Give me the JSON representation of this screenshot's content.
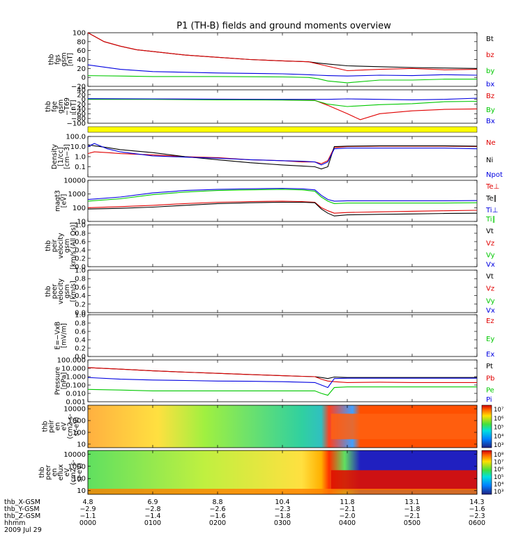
{
  "title": "P1 (TH-B) fields and ground moments overview",
  "colors": {
    "black": "#000000",
    "red": "#e00000",
    "green": "#00c800",
    "blue": "#0000e0",
    "yellow": "#ffff00"
  },
  "chart_data": [
    {
      "type": "line",
      "panel": "fgs",
      "ylabel": [
        "thb",
        "fgs",
        "gsm",
        "[nT]"
      ],
      "ylim": [
        -20,
        100
      ],
      "yticks": [
        "100",
        "80",
        "60",
        "40",
        "20",
        "0",
        "−20"
      ],
      "legend": [
        "Bt",
        "bz",
        "by",
        "bx"
      ],
      "series": [
        {
          "name": "Bt",
          "x": [
            0.0,
            0.25,
            0.5,
            0.75,
            1.0,
            1.5,
            2.0,
            2.5,
            3.0,
            3.2,
            3.4,
            3.55,
            3.7,
            4.0,
            4.5,
            5.0,
            5.5,
            6.0
          ],
          "values": [
            100,
            80,
            70,
            62,
            58,
            50,
            45,
            40,
            37,
            36,
            35,
            32,
            30,
            26,
            24,
            22,
            21,
            20
          ]
        },
        {
          "name": "bz",
          "x": [
            0.0,
            0.25,
            0.5,
            0.75,
            1.0,
            1.5,
            2.0,
            2.5,
            3.0,
            3.2,
            3.4,
            3.55,
            3.7,
            4.0,
            4.5,
            5.0,
            5.5,
            6.0
          ],
          "values": [
            100,
            80,
            70,
            62,
            58,
            50,
            45,
            40,
            37,
            36,
            35,
            30,
            25,
            15,
            18,
            20,
            17,
            18
          ]
        },
        {
          "name": "by",
          "x": [
            0.0,
            0.5,
            1.0,
            2.0,
            3.0,
            3.4,
            3.55,
            3.7,
            4.0,
            4.5,
            5.0,
            5.5,
            6.0
          ],
          "values": [
            4,
            3,
            2,
            2,
            1,
            0,
            -3,
            -8,
            -12,
            -6,
            -6,
            -4,
            -4
          ]
        },
        {
          "name": "bx",
          "x": [
            0.0,
            0.5,
            1.0,
            2.0,
            3.0,
            3.4,
            3.55,
            3.7,
            4.0,
            4.5,
            5.0,
            5.5,
            6.0
          ],
          "values": [
            28,
            18,
            13,
            10,
            8,
            6,
            5,
            4,
            3,
            5,
            4,
            6,
            5
          ]
        }
      ]
    },
    {
      "type": "line",
      "panel": "fge",
      "ylabel": [
        "thb",
        "fge",
        "gsm",
        "−T69",
        "[nT]"
      ],
      "ylim": [
        -100,
        40
      ],
      "yticks": [
        "40",
        "20",
        "0",
        "−20",
        "−40",
        "−60",
        "−80",
        "−100"
      ],
      "legend": [
        "Bz",
        "By",
        "Bx"
      ],
      "series": [
        {
          "name": "Bz",
          "x": [
            0.0,
            1.0,
            2.0,
            3.0,
            3.5,
            3.7,
            4.0,
            4.2,
            4.5,
            5.0,
            5.5,
            6.0
          ],
          "values": [
            2,
            2,
            0,
            -2,
            -4,
            -25,
            -60,
            -85,
            -60,
            -48,
            -42,
            -40
          ]
        },
        {
          "name": "By",
          "x": [
            0.0,
            1.0,
            2.0,
            3.0,
            3.5,
            3.7,
            4.0,
            4.5,
            5.0,
            5.5,
            6.0
          ],
          "values": [
            0,
            0,
            -2,
            -3,
            -5,
            -20,
            -30,
            -22,
            -18,
            -10,
            -8
          ]
        },
        {
          "name": "Bx",
          "x": [
            0.0,
            1.0,
            2.0,
            3.0,
            3.5,
            3.7,
            4.0,
            4.5,
            5.0,
            5.5,
            6.0
          ],
          "values": [
            3,
            2,
            1,
            0,
            0,
            0,
            2,
            0,
            -2,
            0,
            5
          ]
        }
      ]
    },
    {
      "type": "line",
      "panel": "density",
      "scale": "log",
      "ylabel": [
        "Density",
        "[1/cc]",
        "[cm−3]"
      ],
      "ylim": [
        0.01,
        100
      ],
      "yticks": [
        "100.0",
        "10.0",
        "1.0",
        "0.1"
      ],
      "legend": [
        "Ne",
        "Ni",
        "Npot"
      ],
      "series": [
        {
          "name": "Ne",
          "x": [
            0.0,
            0.1,
            0.3,
            0.5,
            1.0,
            1.5,
            2.0,
            2.5,
            3.0,
            3.3,
            3.5,
            3.6,
            3.7,
            3.8,
            4.0,
            4.5,
            5.0,
            5.5,
            6.0
          ],
          "values": [
            2,
            3,
            2.5,
            2,
            1.5,
            1,
            0.8,
            0.5,
            0.4,
            0.3,
            0.3,
            0.2,
            0.4,
            8,
            10,
            11,
            11,
            11,
            10
          ]
        },
        {
          "name": "Ni",
          "x": [
            0.0,
            0.1,
            0.3,
            0.5,
            1.0,
            1.5,
            2.0,
            2.5,
            3.0,
            3.3,
            3.5,
            3.6,
            3.7,
            3.8,
            4.0,
            4.5,
            5.0,
            5.5,
            6.0
          ],
          "values": [
            15,
            12,
            8,
            5,
            2.5,
            1,
            0.5,
            0.25,
            0.15,
            0.12,
            0.1,
            0.06,
            0.1,
            10,
            11,
            12,
            12,
            12,
            11
          ]
        },
        {
          "name": "Npot",
          "x": [
            0.0,
            0.1,
            0.3,
            0.5,
            1.0,
            1.5,
            2.0,
            2.5,
            3.0,
            3.3,
            3.5,
            3.6,
            3.7,
            3.8,
            4.0,
            4.5,
            5.0,
            5.5,
            6.0
          ],
          "values": [
            10,
            20,
            6,
            3,
            1.2,
            0.9,
            0.7,
            0.5,
            0.4,
            0.35,
            0.3,
            0.15,
            0.3,
            6,
            7,
            7,
            7,
            7,
            6
          ]
        }
      ]
    },
    {
      "type": "line",
      "panel": "temperature",
      "scale": "log",
      "ylabel": [
        "magt3",
        "[eV]"
      ],
      "ylim": [
        10,
        10000
      ],
      "yticks": [
        "10000",
        "1000",
        "100",
        "10"
      ],
      "legend": [
        "Te⊥",
        "Te∥",
        "Ti⊥",
        "Ti∥"
      ],
      "series": [
        {
          "name": "Te⊥",
          "x": [
            0.0,
            0.5,
            1.0,
            1.5,
            2.0,
            2.5,
            3.0,
            3.3,
            3.5,
            3.6,
            3.7,
            3.8,
            4.0,
            4.5,
            5.0,
            5.5,
            6.0
          ],
          "values": [
            100,
            120,
            150,
            200,
            250,
            280,
            300,
            280,
            250,
            100,
            60,
            40,
            45,
            50,
            55,
            60,
            65
          ]
        },
        {
          "name": "Te∥",
          "x": [
            0.0,
            0.5,
            1.0,
            1.5,
            2.0,
            2.5,
            3.0,
            3.3,
            3.5,
            3.6,
            3.7,
            3.8,
            4.0,
            4.5,
            5.0,
            5.5,
            6.0
          ],
          "values": [
            80,
            90,
            110,
            150,
            200,
            230,
            250,
            250,
            230,
            80,
            40,
            25,
            30,
            33,
            35,
            38,
            40
          ]
        },
        {
          "name": "Ti⊥",
          "x": [
            0.0,
            0.5,
            1.0,
            1.5,
            2.0,
            2.5,
            3.0,
            3.3,
            3.5,
            3.6,
            3.7,
            3.8,
            4.0,
            4.5,
            5.0,
            5.5,
            6.0
          ],
          "values": [
            400,
            600,
            1200,
            1800,
            2200,
            2400,
            2600,
            2400,
            2000,
            800,
            400,
            300,
            320,
            320,
            320,
            320,
            330
          ]
        },
        {
          "name": "Ti∥",
          "x": [
            0.0,
            0.5,
            1.0,
            1.5,
            2.0,
            2.5,
            3.0,
            3.3,
            3.5,
            3.6,
            3.7,
            3.8,
            4.0,
            4.5,
            5.0,
            5.5,
            6.0
          ],
          "values": [
            300,
            450,
            900,
            1400,
            1800,
            2000,
            2200,
            2000,
            1600,
            600,
            300,
            200,
            220,
            220,
            220,
            220,
            230
          ]
        }
      ]
    },
    {
      "type": "line",
      "panel": "peir_velocity",
      "ylabel": [
        "thb",
        "peir",
        "velocity",
        "gsm",
        "[km/s (All Qs)]"
      ],
      "ylim": [
        0,
        1
      ],
      "yticks": [
        "1.0",
        "0.8",
        "0.6",
        "0.4",
        "0.2",
        "0.0"
      ],
      "legend": [
        "Vt",
        "Vz",
        "Vy",
        "Vx"
      ],
      "series": []
    },
    {
      "type": "line",
      "panel": "peer_velocity",
      "ylabel": [
        "thb",
        "peer",
        "velocity",
        "gsm",
        "[km/s]"
      ],
      "ylim": [
        0,
        1
      ],
      "yticks": [
        "1.0",
        "0.8",
        "0.6",
        "0.4",
        "0.2",
        "0.0"
      ],
      "legend": [
        "Vt",
        "Vz",
        "Vy",
        "Vx"
      ],
      "series": []
    },
    {
      "type": "line",
      "panel": "efield",
      "ylabel": [
        "E=−VxB",
        "[mV/m]"
      ],
      "ylim": [
        0,
        1
      ],
      "yticks": [
        "1.0",
        "0.8",
        "0.6",
        "0.4",
        "0.2",
        "0.0"
      ],
      "legend": [
        "Ez",
        "Ey",
        "Ex"
      ],
      "series": []
    },
    {
      "type": "line",
      "panel": "pressure",
      "scale": "log",
      "ylabel": [
        "Pressure",
        "[nPa]"
      ],
      "ylim": [
        0.001,
        100
      ],
      "yticks": [
        "100.000",
        "10.000",
        "1.000",
        "0.100",
        "0.010",
        "0.001"
      ],
      "legend": [
        "Pt",
        "Pb",
        "Pe",
        "Pi"
      ],
      "series": [
        {
          "name": "Pt",
          "x": [
            0.0,
            0.5,
            1.0,
            1.5,
            2.0,
            2.5,
            3.0,
            3.3,
            3.5,
            3.6,
            3.7,
            3.8,
            4.0,
            4.5,
            5.0,
            5.5,
            6.0
          ],
          "values": [
            12,
            8,
            5,
            3.5,
            2.5,
            1.8,
            1.3,
            1.1,
            1.0,
            0.8,
            0.6,
            0.9,
            0.8,
            0.8,
            0.8,
            0.8,
            0.8
          ]
        },
        {
          "name": "Pb",
          "x": [
            0.0,
            0.5,
            1.0,
            1.5,
            2.0,
            2.5,
            3.0,
            3.3,
            3.5,
            3.6,
            3.7,
            3.8,
            4.0,
            4.5,
            5.0,
            5.5,
            6.0
          ],
          "values": [
            12,
            8,
            5,
            3.5,
            2.5,
            1.8,
            1.3,
            1.1,
            1.0,
            0.5,
            0.3,
            0.25,
            0.2,
            0.22,
            0.2,
            0.2,
            0.2
          ]
        },
        {
          "name": "Pe",
          "x": [
            0.0,
            0.5,
            1.0,
            1.5,
            2.0,
            2.5,
            3.0,
            3.3,
            3.5,
            3.6,
            3.7,
            3.8,
            4.0,
            4.5,
            5.0,
            5.5,
            6.0
          ],
          "values": [
            0.03,
            0.025,
            0.02,
            0.02,
            0.02,
            0.02,
            0.02,
            0.02,
            0.02,
            0.01,
            0.006,
            0.05,
            0.06,
            0.06,
            0.06,
            0.06,
            0.06
          ]
        },
        {
          "name": "Pi",
          "x": [
            0.0,
            0.5,
            1.0,
            1.5,
            2.0,
            2.5,
            3.0,
            3.3,
            3.5,
            3.6,
            3.7,
            3.8,
            4.0,
            4.5,
            5.0,
            5.5,
            6.0
          ],
          "values": [
            0.8,
            0.5,
            0.4,
            0.35,
            0.3,
            0.28,
            0.25,
            0.22,
            0.2,
            0.1,
            0.05,
            0.6,
            0.65,
            0.65,
            0.65,
            0.65,
            0.65
          ]
        }
      ]
    },
    {
      "type": "heatmap",
      "panel": "peir_eflux",
      "scale": "log",
      "ylabel": [
        "thb",
        "peir",
        "en",
        "eV",
        "(cm2-s-",
        "sr-eV)"
      ],
      "ylim": [
        5,
        20000
      ],
      "yticks": [
        "10000",
        "1000",
        "100",
        "10"
      ],
      "colorbar_ticks": [
        "10⁷",
        "10⁶",
        "10⁵",
        "10⁴",
        "10³"
      ]
    },
    {
      "type": "heatmap",
      "panel": "peer_eflux",
      "scale": "log",
      "ylabel": [
        "thb",
        "peer",
        "en",
        "eflux",
        "eV",
        "(cm2-s-",
        "sr-eV)"
      ],
      "ylim": [
        5,
        20000
      ],
      "yticks": [
        "10000",
        "1000",
        "100",
        "10"
      ],
      "colorbar_ticks": [
        "10⁸",
        "10⁷",
        "10⁶",
        "10⁵",
        "10⁴",
        "10³"
      ]
    }
  ],
  "x_axis": {
    "rows": [
      {
        "label": "thb_X-GSM",
        "values": [
          "4.8",
          "6.9",
          "8.8",
          "10.4",
          "11.8",
          "13.1",
          "14.3"
        ]
      },
      {
        "label": "thb_Y-GSM",
        "values": [
          "−2.9",
          "−2.8",
          "−2.6",
          "−2.3",
          "−2.1",
          "−1.8",
          "−1.6"
        ]
      },
      {
        "label": "thb_Z-GSM",
        "values": [
          "−1.1",
          "−1.4",
          "−1.6",
          "−1.8",
          "−2.0",
          "−2.1",
          "−2.3"
        ]
      },
      {
        "label": "hhmm",
        "values": [
          "0000",
          "0100",
          "0200",
          "0300",
          "0400",
          "0500",
          "0600"
        ]
      }
    ],
    "date": "2009 Jul 29"
  }
}
